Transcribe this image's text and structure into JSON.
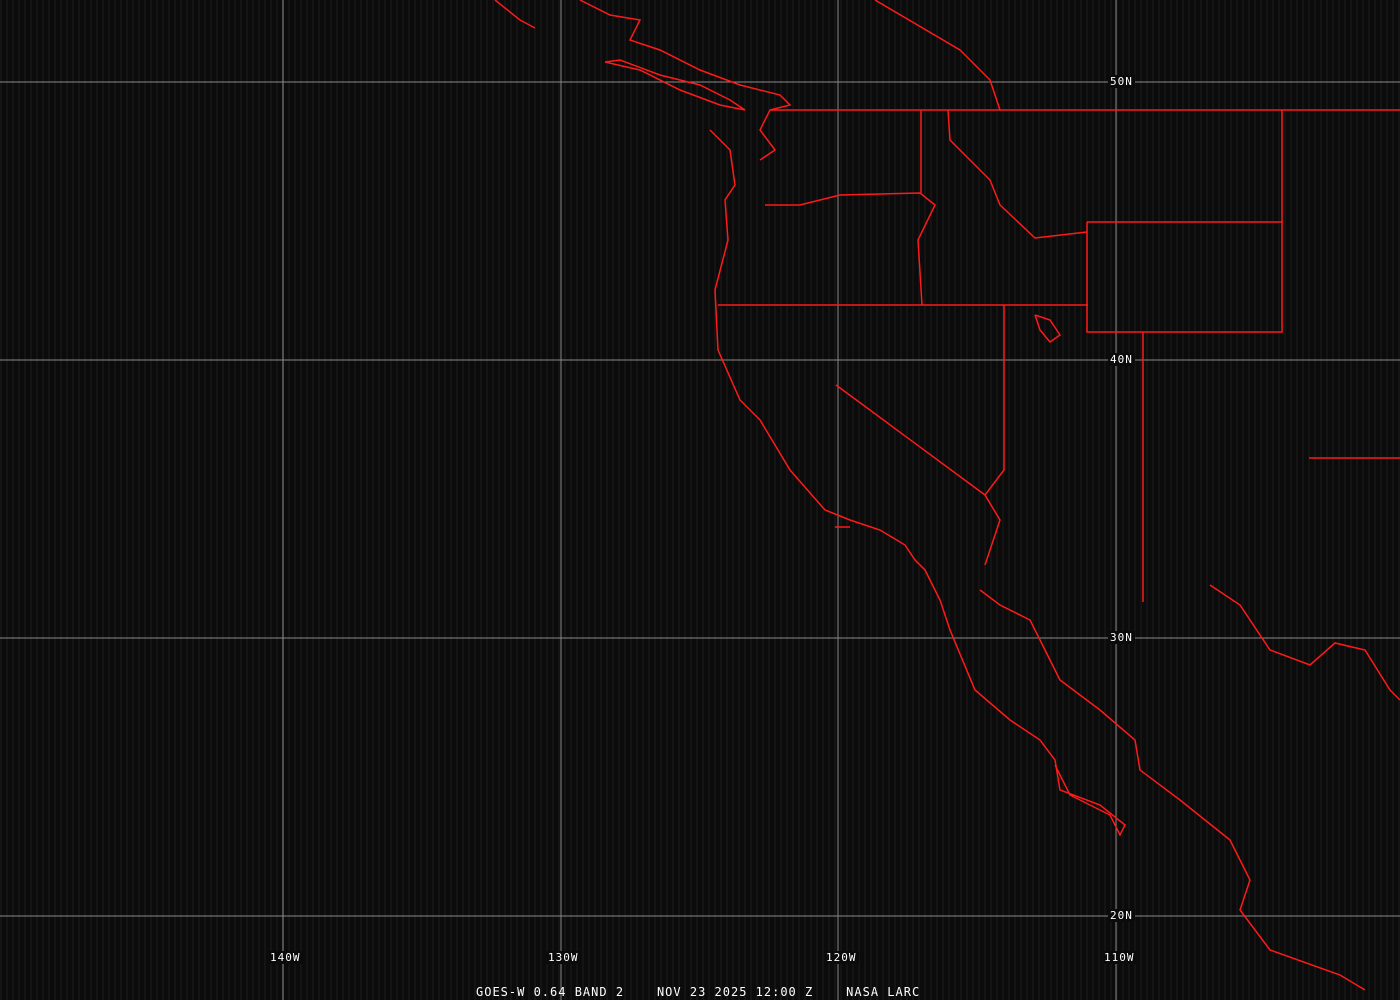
{
  "caption": {
    "satellite": "GOES-W 0.64 BAND 2",
    "datetime": "NOV 23 2025 12:00 Z",
    "source": "NASA LARC"
  },
  "latitude_labels": [
    "50N",
    "40N",
    "30N",
    "20N"
  ],
  "longitude_labels": [
    "140W",
    "130W",
    "120W",
    "110W"
  ],
  "colors": {
    "background": "#0b0b0b",
    "grid": "#8a8a8a",
    "borders": "#ff1a1a",
    "text": "#ffffff"
  }
}
